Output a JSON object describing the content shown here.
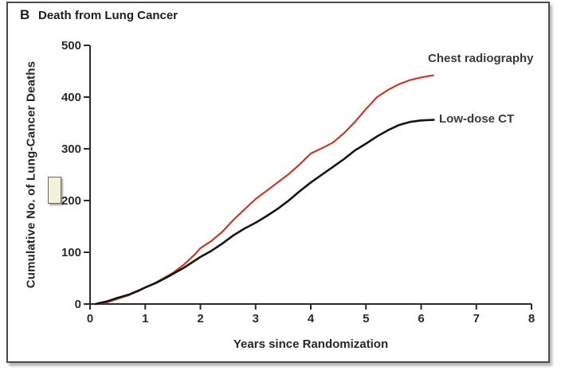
{
  "panel": {
    "label": "B",
    "title": "Death from Lung Cancer"
  },
  "chart_data": {
    "type": "line",
    "title": "Death from Lung Cancer",
    "xlabel": "Years since Randomization",
    "ylabel": "Cumulative No. of Lung-Cancer Deaths",
    "xlim": [
      0,
      8
    ],
    "ylim": [
      0,
      500
    ],
    "xticks": [
      0,
      1,
      2,
      3,
      4,
      5,
      6,
      7,
      8
    ],
    "yticks": [
      0,
      100,
      200,
      300,
      400,
      500
    ],
    "grid": false,
    "legend_position": "inline-labels-right-of-lines",
    "axis_color": "#2b2b2b",
    "series": [
      {
        "name": "Chest radiography",
        "color": "#c53b2a",
        "line_width": 2.2,
        "final_value": 442,
        "points": [
          [
            0.1,
            0
          ],
          [
            0.3,
            3
          ],
          [
            0.5,
            10
          ],
          [
            0.7,
            17
          ],
          [
            0.9,
            26
          ],
          [
            1.0,
            32
          ],
          [
            1.2,
            42
          ],
          [
            1.4,
            54
          ],
          [
            1.5,
            60
          ],
          [
            1.7,
            76
          ],
          [
            1.9,
            96
          ],
          [
            2.0,
            108
          ],
          [
            2.2,
            122
          ],
          [
            2.4,
            140
          ],
          [
            2.6,
            163
          ],
          [
            2.8,
            183
          ],
          [
            3.0,
            203
          ],
          [
            3.2,
            219
          ],
          [
            3.4,
            235
          ],
          [
            3.6,
            251
          ],
          [
            3.8,
            270
          ],
          [
            4.0,
            291
          ],
          [
            4.2,
            301
          ],
          [
            4.4,
            312
          ],
          [
            4.6,
            330
          ],
          [
            4.8,
            352
          ],
          [
            5.0,
            377
          ],
          [
            5.2,
            400
          ],
          [
            5.4,
            414
          ],
          [
            5.6,
            425
          ],
          [
            5.8,
            433
          ],
          [
            6.0,
            438
          ],
          [
            6.1,
            440
          ],
          [
            6.22,
            442
          ]
        ]
      },
      {
        "name": "Low-dose CT",
        "color": "#161616",
        "line_width": 2.6,
        "final_value": 356,
        "points": [
          [
            0.1,
            0
          ],
          [
            0.3,
            5
          ],
          [
            0.5,
            12
          ],
          [
            0.7,
            18
          ],
          [
            0.9,
            27
          ],
          [
            1.0,
            32
          ],
          [
            1.2,
            41
          ],
          [
            1.4,
            52
          ],
          [
            1.5,
            58
          ],
          [
            1.7,
            70
          ],
          [
            1.9,
            84
          ],
          [
            2.0,
            91
          ],
          [
            2.2,
            103
          ],
          [
            2.4,
            117
          ],
          [
            2.6,
            133
          ],
          [
            2.8,
            146
          ],
          [
            3.0,
            157
          ],
          [
            3.2,
            170
          ],
          [
            3.4,
            184
          ],
          [
            3.6,
            200
          ],
          [
            3.8,
            218
          ],
          [
            4.0,
            235
          ],
          [
            4.2,
            250
          ],
          [
            4.4,
            265
          ],
          [
            4.6,
            280
          ],
          [
            4.8,
            297
          ],
          [
            5.0,
            310
          ],
          [
            5.2,
            324
          ],
          [
            5.4,
            336
          ],
          [
            5.6,
            346
          ],
          [
            5.8,
            352
          ],
          [
            6.0,
            355
          ],
          [
            6.23,
            356
          ]
        ]
      }
    ]
  },
  "artifacts": {
    "highlight_box": {
      "description": "small pale-yellow cursor/highlight rectangle left of the 200 tick label",
      "fill": "#f1f1dc",
      "border_color": "#6b6b52"
    }
  }
}
